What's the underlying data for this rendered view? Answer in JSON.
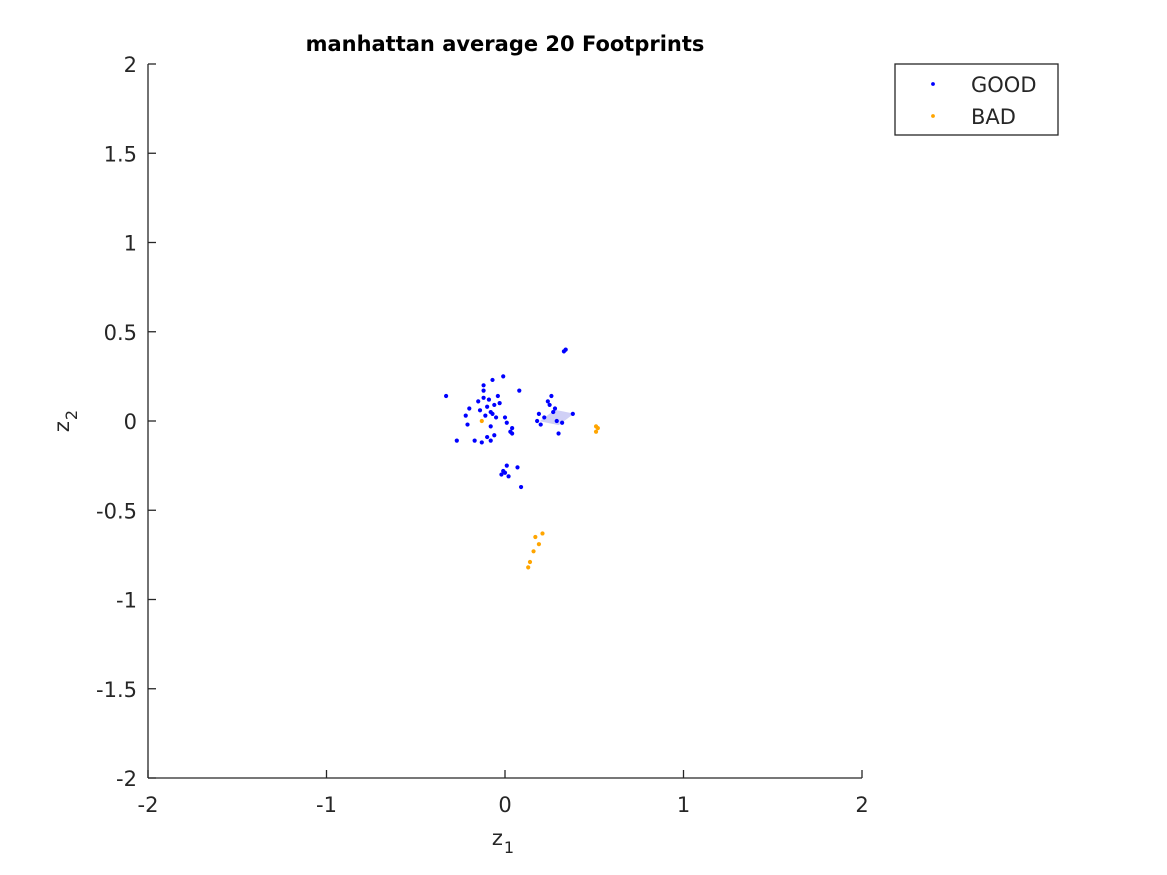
{
  "chart_data": {
    "type": "scatter",
    "title": "manhattan average 20 Footprints",
    "xlabel": "z",
    "xlabel_sub": "1",
    "ylabel": "z",
    "ylabel_sub": "2",
    "xlim": [
      -2,
      2
    ],
    "ylim": [
      -2,
      2
    ],
    "xticks": [
      -2,
      -1,
      0,
      1,
      2
    ],
    "xtick_labels": [
      "-2",
      "-1",
      "0",
      "1",
      "2"
    ],
    "yticks": [
      -2,
      -1.5,
      -1,
      -0.5,
      0,
      0.5,
      1,
      1.5,
      2
    ],
    "ytick_labels": [
      "-2",
      "-1.5",
      "-1",
      "-0.5",
      "0",
      "0.5",
      "1",
      "1.5",
      "2"
    ],
    "grid": false,
    "legend_position": "top-right",
    "series": [
      {
        "name": "GOOD",
        "color": "#0000ff",
        "points": [
          [
            -0.33,
            0.14
          ],
          [
            -0.27,
            -0.11
          ],
          [
            -0.22,
            0.03
          ],
          [
            -0.21,
            -0.02
          ],
          [
            -0.2,
            0.07
          ],
          [
            -0.17,
            -0.11
          ],
          [
            -0.15,
            0.11
          ],
          [
            -0.14,
            0.06
          ],
          [
            -0.13,
            -0.12
          ],
          [
            -0.12,
            0.2
          ],
          [
            -0.12,
            0.17
          ],
          [
            -0.12,
            0.13
          ],
          [
            -0.11,
            0.03
          ],
          [
            -0.1,
            0.08
          ],
          [
            -0.1,
            -0.09
          ],
          [
            -0.09,
            0.12
          ],
          [
            -0.08,
            0.05
          ],
          [
            -0.08,
            -0.03
          ],
          [
            -0.08,
            -0.11
          ],
          [
            -0.07,
            0.23
          ],
          [
            -0.07,
            0.04
          ],
          [
            -0.06,
            0.09
          ],
          [
            -0.06,
            -0.08
          ],
          [
            -0.05,
            0.02
          ],
          [
            -0.04,
            0.14
          ],
          [
            -0.03,
            0.1
          ],
          [
            -0.02,
            -0.3
          ],
          [
            -0.01,
            -0.28
          ],
          [
            -0.01,
            0.25
          ],
          [
            0.0,
            0.02
          ],
          [
            0.0,
            -0.29
          ],
          [
            0.01,
            -0.01
          ],
          [
            0.01,
            -0.25
          ],
          [
            0.02,
            -0.31
          ],
          [
            0.03,
            -0.06
          ],
          [
            0.04,
            -0.04
          ],
          [
            0.04,
            -0.07
          ],
          [
            0.07,
            -0.26
          ],
          [
            0.08,
            0.17
          ],
          [
            0.09,
            -0.37
          ],
          [
            0.18,
            0.0
          ],
          [
            0.19,
            0.04
          ],
          [
            0.2,
            -0.02
          ],
          [
            0.22,
            0.02
          ],
          [
            0.24,
            0.11
          ],
          [
            0.25,
            0.09
          ],
          [
            0.26,
            0.14
          ],
          [
            0.27,
            0.05
          ],
          [
            0.28,
            0.07
          ],
          [
            0.29,
            0.0
          ],
          [
            0.3,
            -0.07
          ],
          [
            0.32,
            -0.01
          ],
          [
            0.33,
            0.39
          ],
          [
            0.34,
            0.4
          ],
          [
            0.38,
            0.04
          ]
        ]
      },
      {
        "name": "BAD",
        "color": "#ffa500",
        "points": [
          [
            -0.13,
            0.0
          ],
          [
            0.13,
            -0.82
          ],
          [
            0.14,
            -0.79
          ],
          [
            0.16,
            -0.73
          ],
          [
            0.17,
            -0.65
          ],
          [
            0.19,
            -0.69
          ],
          [
            0.21,
            -0.63
          ],
          [
            0.51,
            -0.03
          ],
          [
            0.51,
            -0.06
          ],
          [
            0.52,
            -0.04
          ]
        ]
      }
    ],
    "footprint_color": "#c8c8f5",
    "footprint_points": [
      [
        0.2,
        0.0
      ],
      [
        0.28,
        0.06
      ],
      [
        0.38,
        0.04
      ],
      [
        0.3,
        -0.02
      ]
    ]
  }
}
